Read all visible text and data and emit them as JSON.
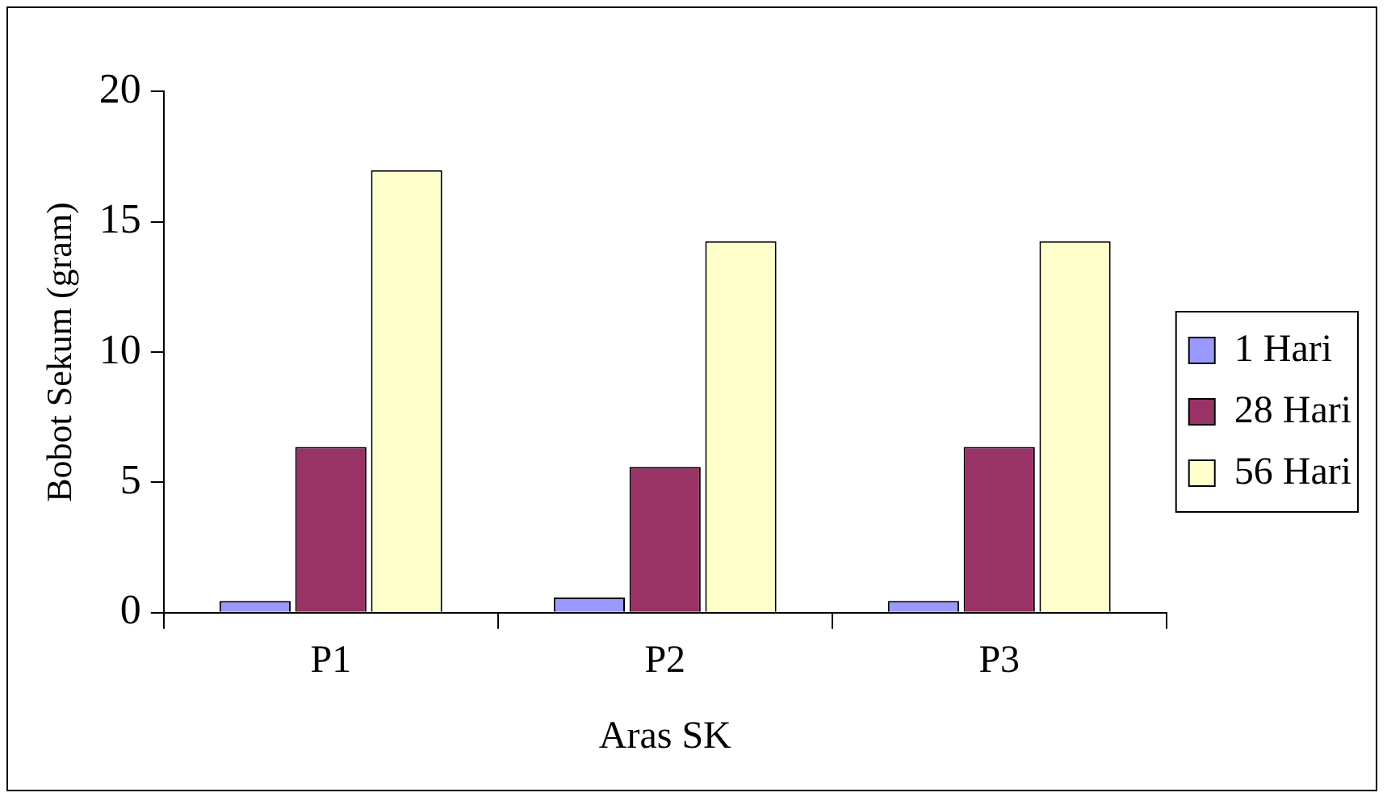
{
  "chart_data": {
    "type": "bar",
    "xlabel": "Aras SK",
    "ylabel": "Bobot Sekum (gram)",
    "categories": [
      "P1",
      "P2",
      "P3"
    ],
    "series": [
      {
        "name": "1 Hari",
        "color": "#9999ff",
        "values": [
          0.45,
          0.58,
          0.45
        ]
      },
      {
        "name": "28 Hari",
        "color": "#993366",
        "values": [
          6.36,
          5.59,
          6.36
        ]
      },
      {
        "name": "56 Hari",
        "color": "#ffffcc",
        "values": [
          16.98,
          14.25,
          14.25
        ]
      }
    ],
    "ylim": [
      0,
      20
    ],
    "yticks": [
      0,
      5,
      10,
      15,
      20
    ],
    "grid": false,
    "legend": "right"
  }
}
